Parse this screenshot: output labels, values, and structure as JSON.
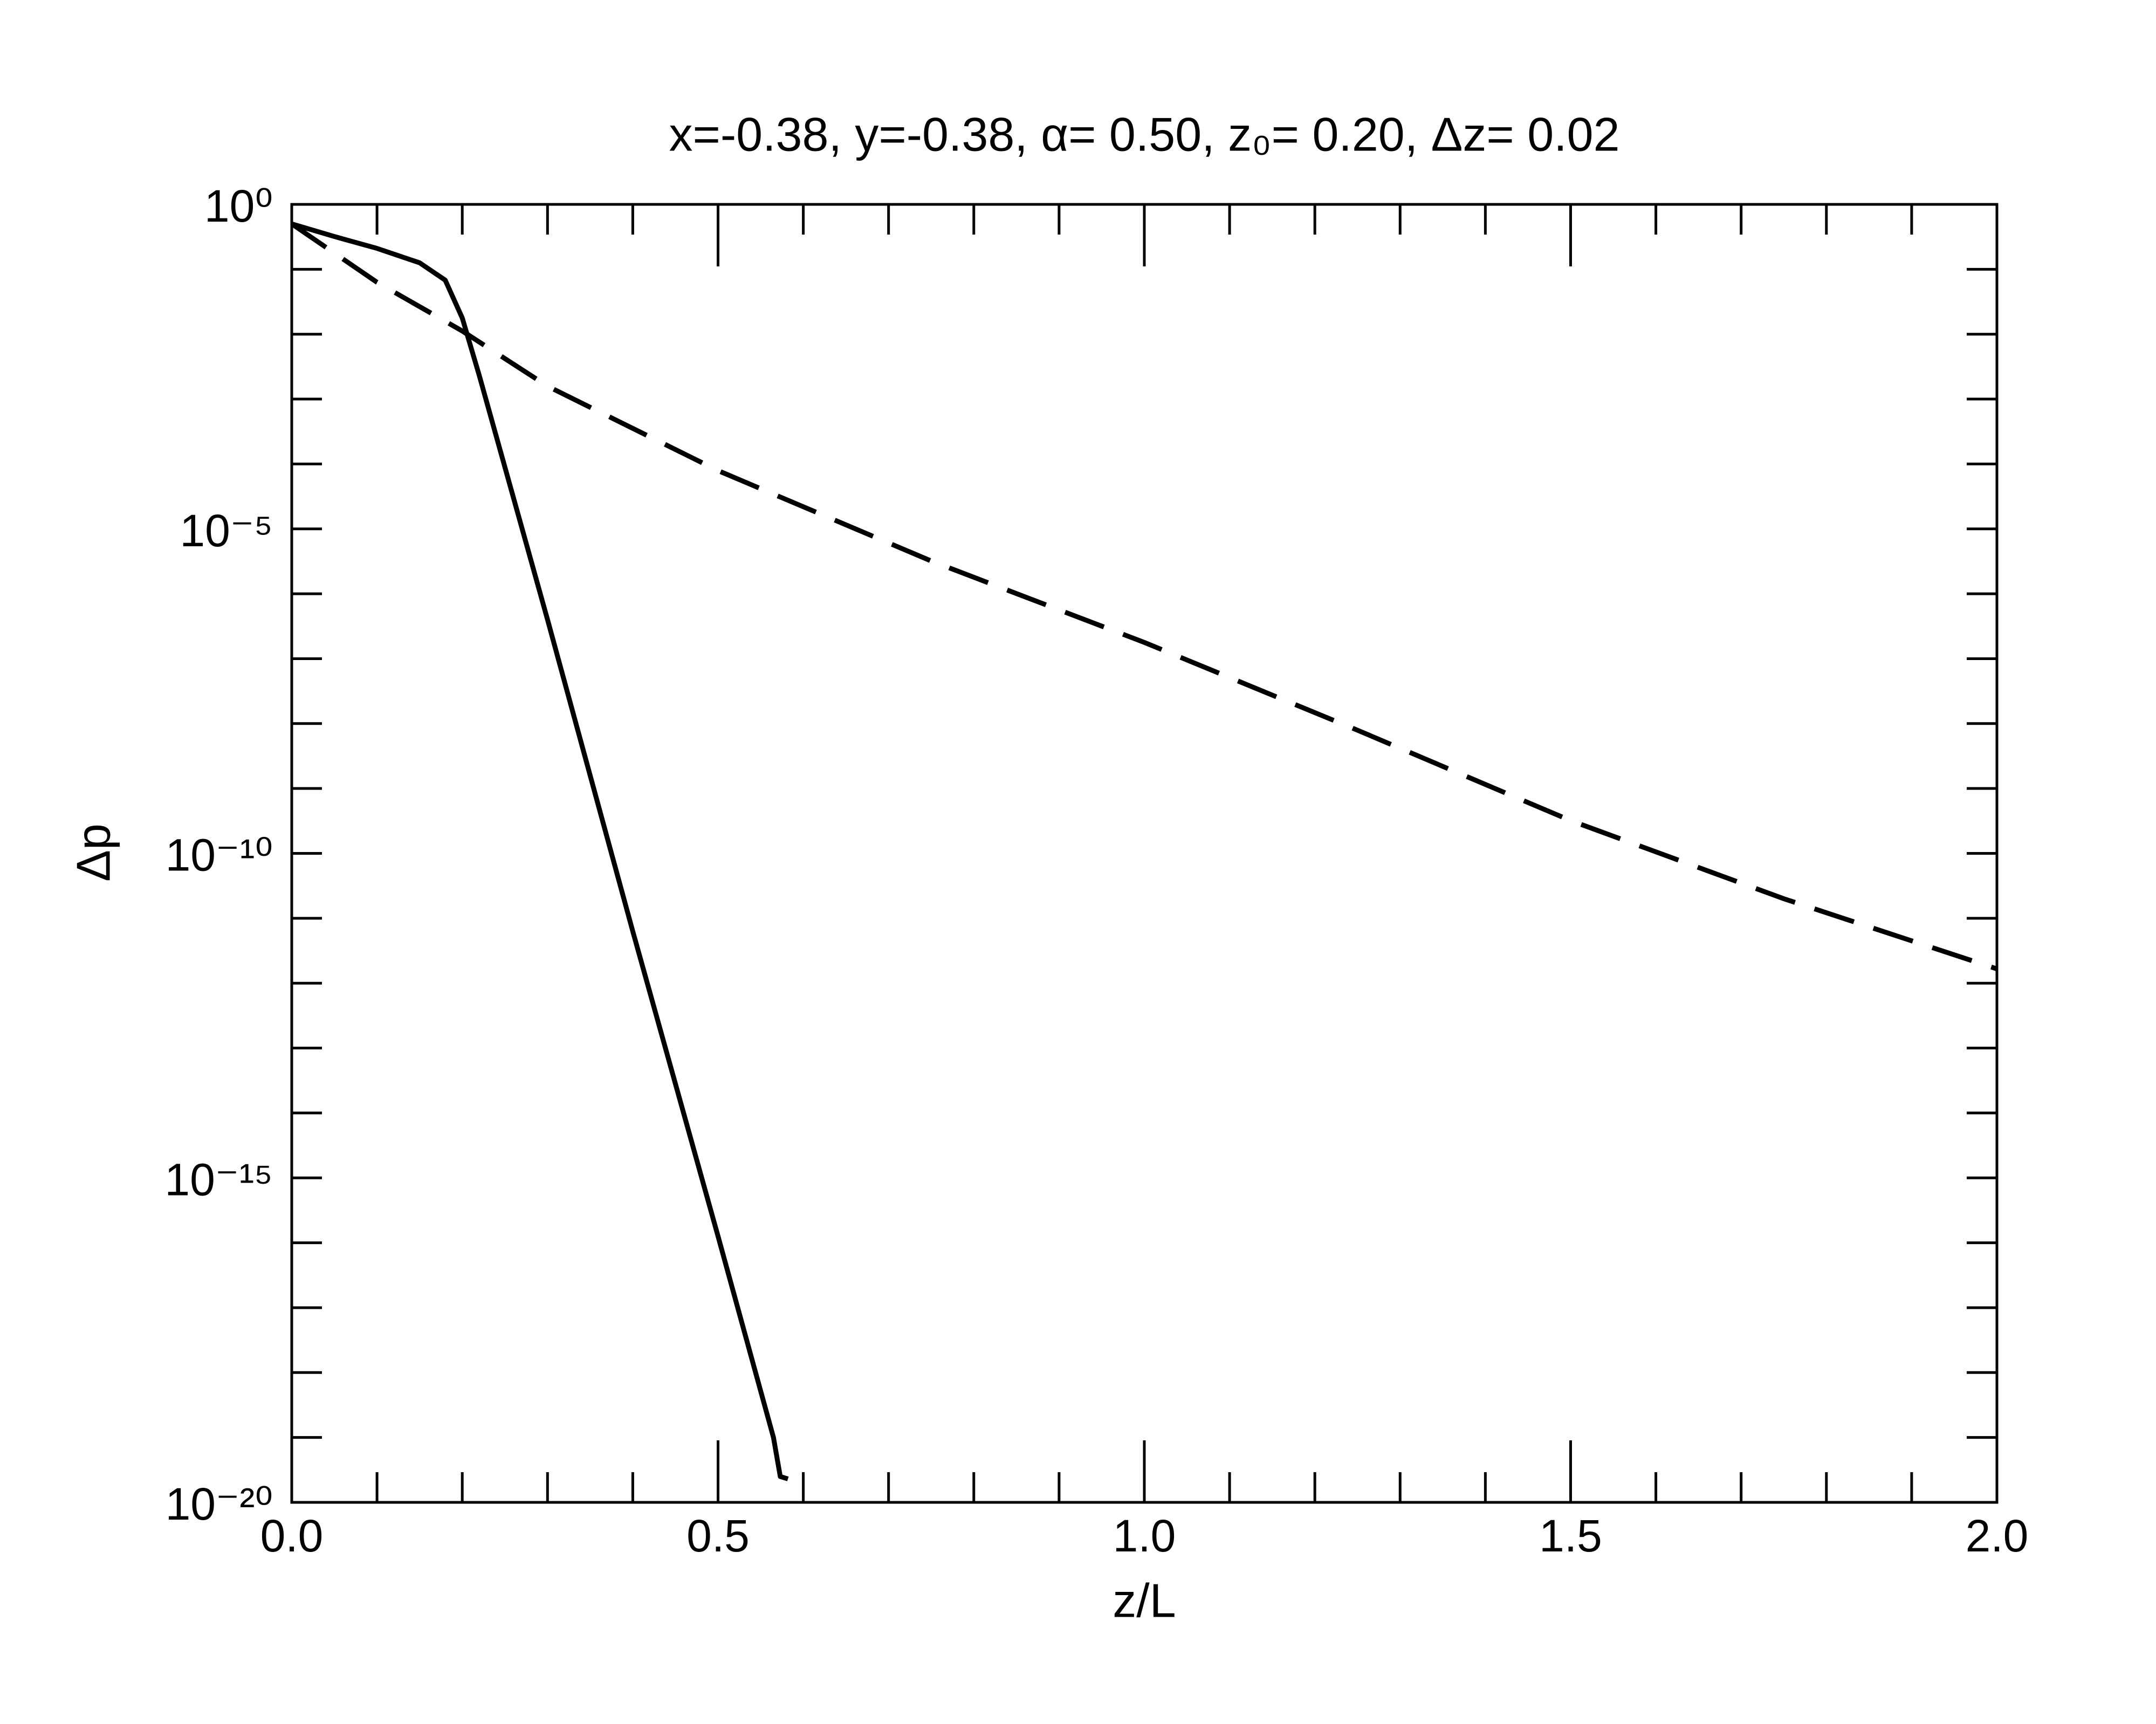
{
  "chart_data": {
    "type": "line",
    "title": "x=-0.38, y=-0.38, α= 0.50, z₀= 0.20, Δz= 0.02",
    "x_label": "z/L",
    "y_label": "Δp",
    "log_y": true,
    "xlim": [
      0,
      2
    ],
    "ylim": [
      1e-20,
      1
    ],
    "xticks": [
      {
        "value": 0,
        "label": "0.0"
      },
      0.5,
      {
        "value": 1,
        "label": "1.0"
      },
      1.5,
      {
        "value": 2,
        "label": "2.0"
      }
    ],
    "xminorticks": [
      0.1,
      0.2,
      0.3,
      0.4,
      0.6,
      0.7,
      0.8,
      0.9,
      1.1,
      1.2,
      1.3,
      1.4,
      1.6,
      1.7,
      1.8,
      1.9
    ],
    "yticks": [
      {
        "value": 1,
        "label": "10⁰"
      },
      {
        "value": 1e-05,
        "label": "10⁻⁵"
      },
      {
        "value": 1e-10,
        "label": "10⁻¹⁰"
      },
      {
        "value": 1e-15,
        "label": "10⁻¹⁵"
      },
      {
        "value": 1e-20,
        "label": "10⁻²⁰"
      }
    ],
    "yminorticks": [
      0.1,
      0.01,
      0.001,
      0.0001,
      1e-06,
      1e-07,
      1e-08,
      1e-09,
      1e-11,
      1e-12,
      1e-13,
      1e-14,
      1e-16,
      1e-17,
      1e-18,
      1e-19
    ],
    "series": [
      {
        "color": "#000000",
        "dash": false,
        "x": [
          0,
          0.05,
          0.1,
          0.15,
          0.18,
          0.2,
          0.22,
          0.3,
          0.4,
          0.5,
          0.565,
          0.573,
          0.582
        ],
        "values": [
          0.5,
          0.32,
          0.21,
          0.126,
          0.068,
          0.0178,
          0.0023,
          4e-07,
          6.3e-12,
          1.26e-16,
          1e-19,
          2.5e-20,
          2.3e-20
        ]
      },
      {
        "color": "#000000",
        "dash": true,
        "x": [
          0,
          0.1,
          0.2,
          0.3,
          0.5,
          0.75,
          1.0,
          1.25,
          1.5,
          1.75,
          2.0
        ],
        "values": [
          0.5,
          0.063,
          0.0112,
          0.00158,
          7.9e-05,
          3.2e-06,
          1.78e-07,
          7.9e-09,
          3.2e-10,
          2e-11,
          1.66e-12
        ]
      }
    ]
  }
}
